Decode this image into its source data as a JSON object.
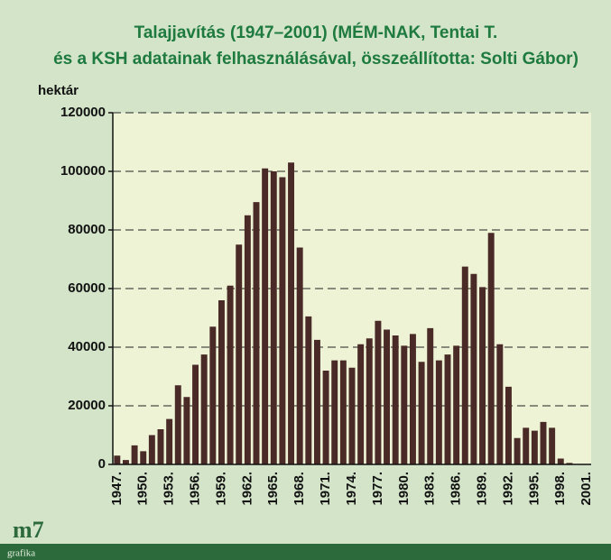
{
  "chart_data": {
    "type": "bar",
    "title": "Talajjavítás (1947–2001) (MÉM-NAK, Tentai T.",
    "subtitle": "és a KSH adatainak felhasználásával, összeállította: Solti Gábor)",
    "y_label": "hektár",
    "categories": [
      "1947.",
      null,
      null,
      "1950.",
      null,
      null,
      "1953.",
      null,
      null,
      "1956.",
      null,
      null,
      "1959.",
      null,
      null,
      "1962.",
      null,
      null,
      "1965.",
      null,
      null,
      "1968.",
      null,
      null,
      "1971.",
      null,
      null,
      "1974.",
      null,
      null,
      "1977.",
      null,
      null,
      "1980.",
      null,
      null,
      "1983.",
      null,
      null,
      "1986.",
      null,
      null,
      "1989.",
      null,
      null,
      "1992.",
      null,
      null,
      "1995.",
      null,
      null,
      "1998.",
      null,
      null,
      "2001."
    ],
    "values": [
      3000,
      1500,
      6500,
      4500,
      10000,
      12000,
      15500,
      27000,
      23000,
      34000,
      37500,
      47000,
      56000,
      61000,
      75000,
      85000,
      89500,
      101000,
      100000,
      98000,
      103000,
      74000,
      50500,
      42500,
      32000,
      35500,
      35500,
      33000,
      41000,
      43000,
      49000,
      46000,
      44000,
      40500,
      44500,
      35000,
      46500,
      35500,
      37500,
      40500,
      67500,
      65000,
      60500,
      79000,
      41000,
      26500,
      9000,
      12500,
      11500,
      14500,
      12500,
      2000,
      500,
      0,
      0
    ],
    "color": "#4a2a27",
    "ylim": [
      0,
      120000
    ],
    "yticks": [
      0,
      20000,
      40000,
      60000,
      80000,
      100000,
      120000
    ],
    "grid": true
  },
  "footer": {
    "logo": "m7",
    "sub": "grafika"
  }
}
